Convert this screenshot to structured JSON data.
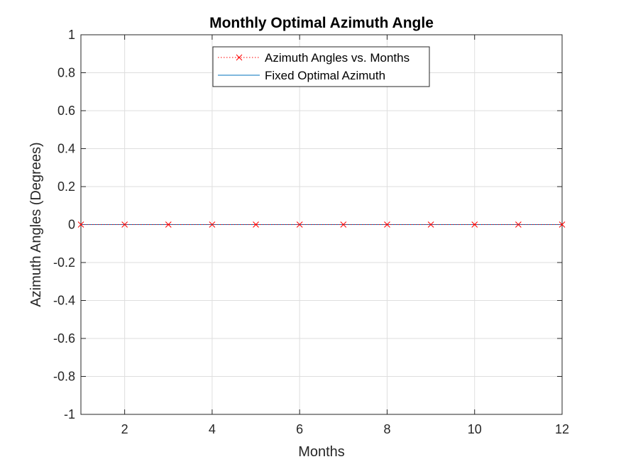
{
  "chart_data": {
    "type": "line",
    "title": "Monthly Optimal Azimuth Angle",
    "xlabel": "Months",
    "ylabel": "Azimuth Angles (Degrees)",
    "xlim": [
      1,
      12
    ],
    "ylim": [
      -1,
      1
    ],
    "x_ticks": [
      2,
      4,
      6,
      8,
      10,
      12
    ],
    "y_ticks": [
      -1,
      -0.8,
      -0.6,
      -0.4,
      -0.2,
      0,
      0.2,
      0.4,
      0.6,
      0.8,
      1
    ],
    "x_tick_labels": [
      "2",
      "4",
      "6",
      "8",
      "10",
      "12"
    ],
    "y_tick_labels": [
      "-1",
      "-0.8",
      "-0.6",
      "-0.4",
      "-0.2",
      "0",
      "0.2",
      "0.4",
      "0.6",
      "0.8",
      "1"
    ],
    "grid": true,
    "legend_position": "top-center",
    "series": [
      {
        "name": "Azimuth Angles vs. Months",
        "x": [
          1,
          2,
          3,
          4,
          5,
          6,
          7,
          8,
          9,
          10,
          11,
          12
        ],
        "values": [
          0,
          0,
          0,
          0,
          0,
          0,
          0,
          0,
          0,
          0,
          0,
          0
        ],
        "color": "#ff0000",
        "line_style": "dotted",
        "marker": "x"
      },
      {
        "name": "Fixed Optimal Azimuth",
        "x": [
          1,
          12
        ],
        "values": [
          0,
          0
        ],
        "color": "#0072bd",
        "line_style": "solid",
        "marker": "none"
      }
    ]
  }
}
